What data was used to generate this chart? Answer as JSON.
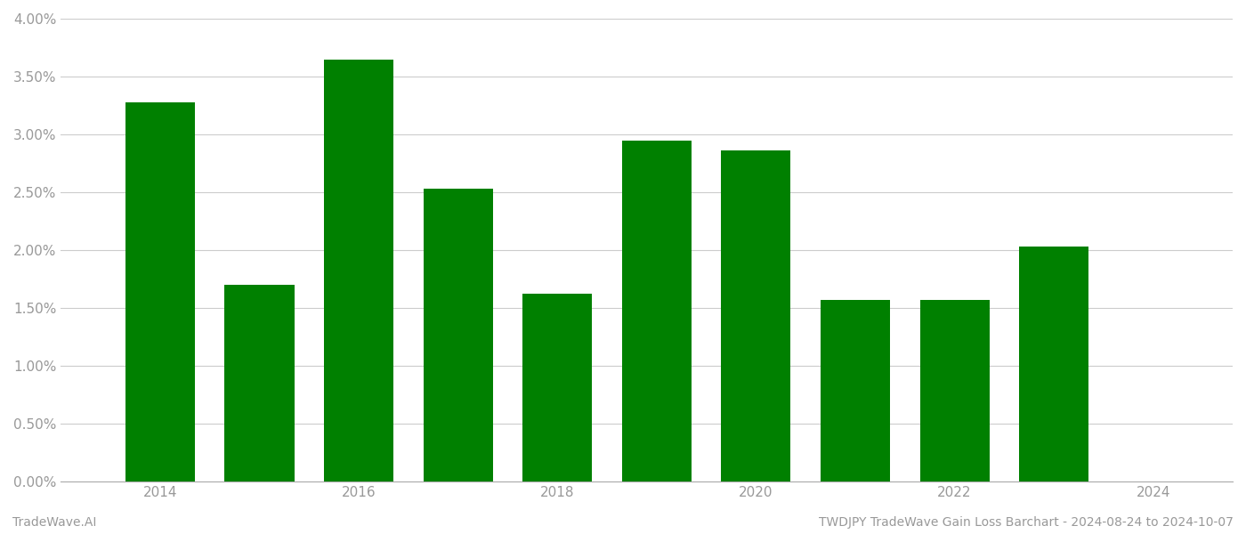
{
  "years": [
    2014,
    2015,
    2016,
    2017,
    2018,
    2019,
    2020,
    2021,
    2022,
    2023
  ],
  "values": [
    0.0328,
    0.017,
    0.0365,
    0.0253,
    0.0162,
    0.0295,
    0.0286,
    0.0157,
    0.0157,
    0.0203
  ],
  "bar_color": "#008000",
  "ylim": [
    0,
    0.04
  ],
  "yticks": [
    0.0,
    0.005,
    0.01,
    0.015,
    0.02,
    0.025,
    0.03,
    0.035,
    0.04
  ],
  "background_color": "#ffffff",
  "grid_color": "#cccccc",
  "footer_left": "TradeWave.AI",
  "footer_right": "TWDJPY TradeWave Gain Loss Barchart - 2024-08-24 to 2024-10-07",
  "footer_fontsize": 10,
  "tick_label_color": "#999999",
  "bar_width": 0.7,
  "xlim": [
    2013.0,
    2024.8
  ],
  "xticks": [
    2014,
    2016,
    2018,
    2020,
    2022,
    2024
  ]
}
